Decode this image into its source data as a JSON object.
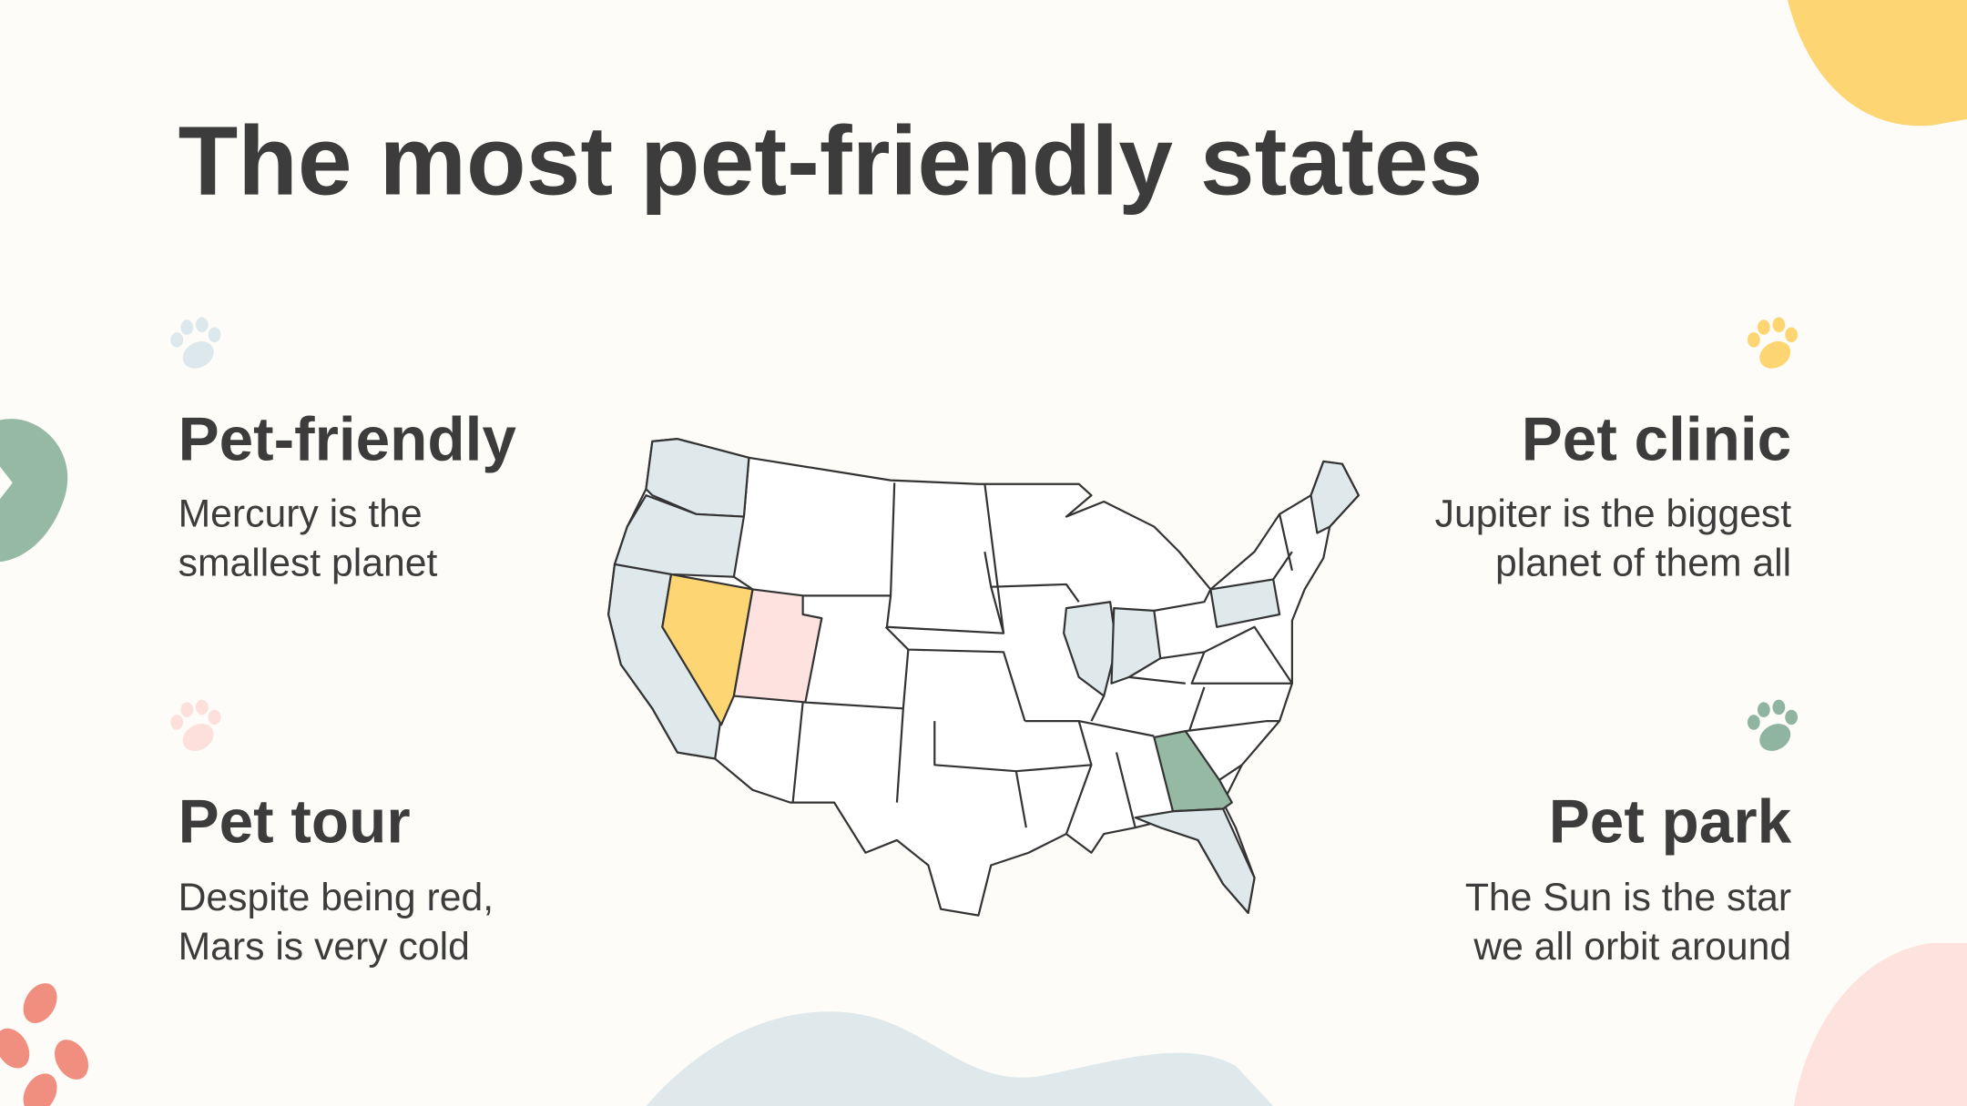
{
  "title": "The most pet-friendly states",
  "sections": [
    {
      "heading": "Pet-friendly",
      "text": [
        "Mercury is the",
        "smallest planet"
      ]
    },
    {
      "heading": "Pet clinic",
      "text": [
        "Jupiter is the biggest",
        "planet of them all"
      ]
    },
    {
      "heading": "Pet tour",
      "text": [
        "Despite being red,",
        "Mars is very cold"
      ]
    },
    {
      "heading": "Pet park",
      "text": [
        "The Sun is the star",
        "we all orbit around"
      ]
    }
  ]
}
